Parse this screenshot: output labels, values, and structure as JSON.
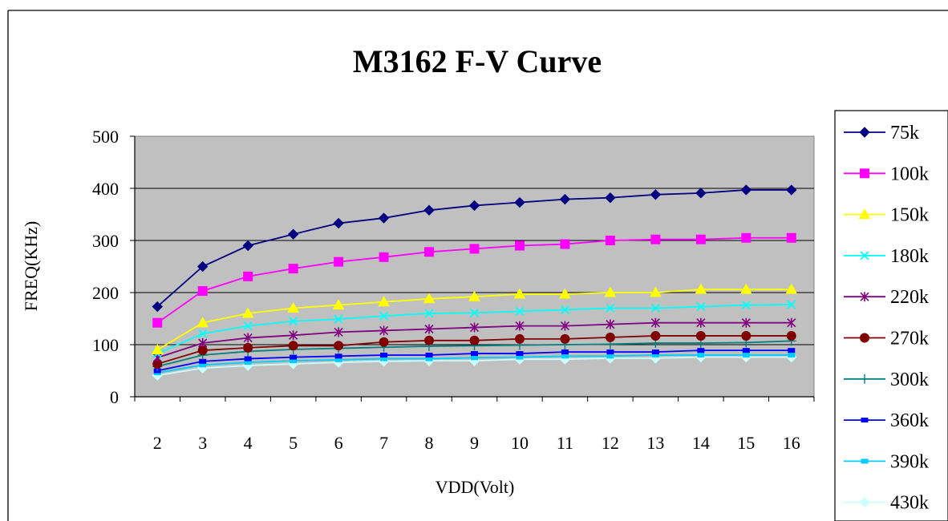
{
  "chart_data": {
    "type": "line",
    "title": "M3162 F-V Curve",
    "xlabel": "VDD(Volt)",
    "ylabel": "FREQ(KHz)",
    "x": [
      2,
      3,
      4,
      5,
      6,
      7,
      8,
      9,
      10,
      11,
      12,
      13,
      14,
      15,
      16
    ],
    "xlim": [
      1.5,
      16.5
    ],
    "ylim": [
      0,
      500
    ],
    "yticks": [
      0,
      100,
      200,
      300,
      400,
      500
    ],
    "grid": "horizontal",
    "plot_background": "#c0c0c0",
    "legend": "right",
    "series": [
      {
        "name": "75k",
        "color": "#000080",
        "marker": "diamond",
        "values": [
          173,
          250,
          290,
          312,
          333,
          343,
          358,
          367,
          373,
          379,
          382,
          388,
          391,
          397,
          397
        ]
      },
      {
        "name": "100k",
        "color": "#ff00ff",
        "marker": "square",
        "values": [
          142,
          203,
          231,
          246,
          259,
          268,
          278,
          284,
          290,
          293,
          300,
          302,
          302,
          305,
          305
        ]
      },
      {
        "name": "150k",
        "color": "#ffff00",
        "marker": "triangle",
        "values": [
          90,
          142,
          160,
          170,
          176,
          182,
          188,
          192,
          197,
          197,
          200,
          200,
          206,
          206,
          206
        ]
      },
      {
        "name": "180k",
        "color": "#00ffff",
        "marker": "x",
        "values": [
          83,
          121,
          136,
          145,
          149,
          155,
          160,
          161,
          164,
          167,
          170,
          170,
          173,
          176,
          177
        ]
      },
      {
        "name": "220k",
        "color": "#800080",
        "marker": "star",
        "values": [
          75,
          103,
          113,
          118,
          124,
          127,
          130,
          133,
          136,
          136,
          139,
          142,
          142,
          142,
          142
        ]
      },
      {
        "name": "270k",
        "color": "#800000",
        "marker": "circle",
        "values": [
          63,
          89,
          94,
          98,
          98,
          105,
          108,
          108,
          111,
          111,
          114,
          117,
          117,
          117,
          117
        ]
      },
      {
        "name": "300k",
        "color": "#008080",
        "marker": "plus",
        "values": [
          58,
          80,
          87,
          91,
          93,
          95,
          97,
          98,
          99,
          100,
          101,
          103,
          103,
          104,
          107
        ]
      },
      {
        "name": "360k",
        "color": "#0000ff",
        "marker": "dash",
        "values": [
          50,
          68,
          73,
          76,
          78,
          80,
          80,
          83,
          83,
          86,
          86,
          86,
          89,
          89,
          89
        ]
      },
      {
        "name": "390k",
        "color": "#00ccff",
        "marker": "dash",
        "values": [
          46,
          61,
          66,
          69,
          71,
          73,
          73,
          75,
          76,
          78,
          78,
          80,
          80,
          80,
          80
        ]
      },
      {
        "name": "430k",
        "color": "#ccffff",
        "marker": "diamond",
        "values": [
          41,
          55,
          60,
          63,
          66,
          68,
          69,
          69,
          72,
          72,
          74,
          74,
          76,
          76,
          76
        ]
      }
    ]
  }
}
